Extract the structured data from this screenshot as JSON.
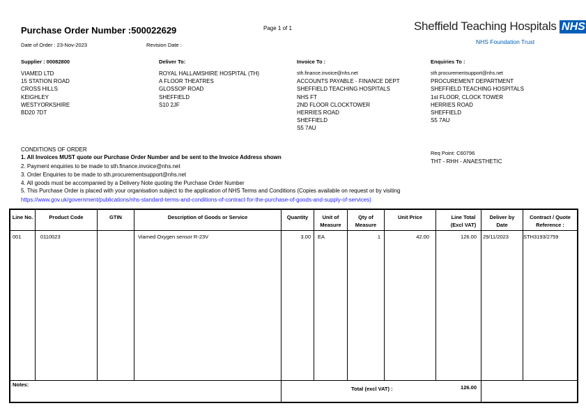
{
  "header": {
    "title": "Purchase Order Number :500022629",
    "page": "Page 1 of 1",
    "date_of_order": "Date of Order : 23-Nov-2023",
    "revision_date": "Revision Date :",
    "logo": {
      "name": "Sheffield Teaching Hospitals",
      "badge": "NHS",
      "sub": "NHS Foundation Trust",
      "color": "#005eb8"
    }
  },
  "supplier": {
    "heading": "Supplier : 00082800",
    "lines": [
      "VIAMED LTD",
      "15 STATION ROAD",
      "CROSS HILLS",
      "KEIGHLEY",
      "WESTYORKSHIRE",
      "BD20 7DT"
    ]
  },
  "deliver": {
    "heading": "Deliver To:",
    "lines": [
      "ROYAL HALLAMSHIRE HOSPITAL (TH)",
      "A FLOOR THEATRES",
      "GLOSSOP ROAD",
      "SHEFFIELD",
      "S10 2JF"
    ]
  },
  "invoice": {
    "heading": "Invoice To :",
    "lines": [
      "sth.finance.invoice@nhs.net",
      "ACCOUNTS PAYABLE - FINANCE DEPT",
      "SHEFFIELD TEACHING HOSPITALS",
      "NHS FT",
      "2ND FLOOR CLOCKTOWER",
      "HERRIES ROAD",
      "SHEFFIELD",
      "S5 7AU"
    ]
  },
  "enquiries": {
    "heading": "Enquiries To :",
    "lines": [
      "sth.procurementsupport@nhs.net",
      "PROCUREMENT DEPARTMENT",
      "SHEFFIELD TEACHING HOSPITALS",
      "1st FLOOR, CLOCK TOWER",
      "HERRIES ROAD",
      "SHEFFIELD",
      "S5 7AU"
    ]
  },
  "req_point": {
    "line1": "Req Point: C60796",
    "line2": "THT - RHH - ANAESTHETIC"
  },
  "conditions": {
    "heading": "CONDITIONS OF ORDER",
    "items": [
      "1. All Invoices MUST quote our Purchase Order Number and be sent to the Invoice Address shown",
      "2. Payment enquiries to be made to sth.finance.invoice@nhs.net",
      "3. Order Enquiries to be made to sth.procurementsupport@nhs.net",
      "4. All goods must be accompanied by a Delivery Note quoting the Purchase Order Number",
      "5. This Purchase Order is placed with your organisation subject to the application of NHS Terms and Conditions (Copies available on request or by visiting"
    ],
    "link": "https://www.gov.uk/government/publications/nhs-standard-terms-and-conditions-of-contract-for-the-purchase-of-goods-and-supply-of-services)"
  },
  "table": {
    "columns": [
      "Line No.",
      "Product Code",
      "GTIN",
      "Description of Goods or Service",
      "Quantity",
      "Unit of Measure",
      "Qty of Measure",
      "Unit Price",
      "Line Total (Excl VAT)",
      "Deliver by Date",
      "Contract / Quote Reference :"
    ],
    "rows": [
      {
        "line": "001",
        "product_code": "0110023",
        "gtin": "",
        "description": "Viamed Oxygen sensor R-23V",
        "quantity": "3.00",
        "uom": "EA",
        "qty_measure": "1",
        "unit_price": "42.00",
        "line_total": "126.00",
        "deliver_by": "29/11/2023",
        "contract_ref": "STH3193/2759"
      }
    ]
  },
  "footer": {
    "notes_label": "Notes:",
    "total_label": "Total (excl VAT) :",
    "total_value": "126.00"
  }
}
